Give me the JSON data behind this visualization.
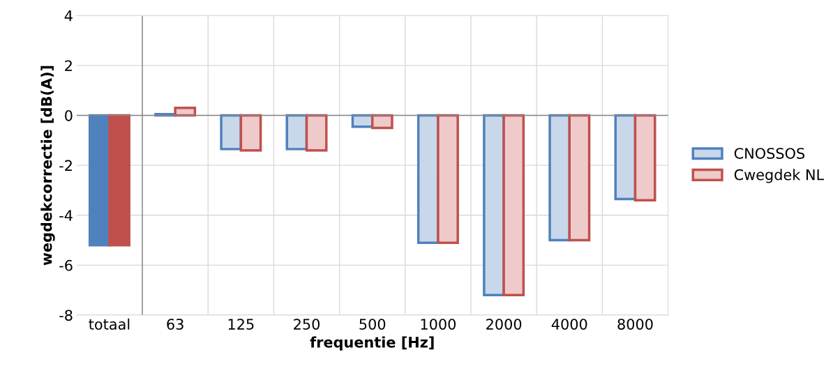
{
  "chart_data": {
    "type": "bar",
    "xlabel": "frequentie [Hz]",
    "ylabel": "wegdekcorrectie [dB(A)]",
    "categories": [
      "totaal",
      "63",
      "125",
      "250",
      "500",
      "1000",
      "2000",
      "4000",
      "8000"
    ],
    "series": [
      {
        "name": "CNOSSOS",
        "color": "#4f81bd",
        "colors": [
          "#4f81bd",
          "#c9d7ea",
          "#c9d7ea",
          "#c9d7ea",
          "#c9d7ea",
          "#c9d7ea",
          "#c9d7ea",
          "#c9d7ea",
          "#c9d7ea"
        ],
        "values": [
          -5.2,
          0.05,
          -1.35,
          -1.35,
          -0.45,
          -5.1,
          -7.2,
          -5.0,
          -3.35
        ]
      },
      {
        "name": "Cwegdek NL",
        "color": "#c0504d",
        "colors": [
          "#c0504d",
          "#efcaca",
          "#efcaca",
          "#efcaca",
          "#efcaca",
          "#efcaca",
          "#efcaca",
          "#efcaca",
          "#efcaca"
        ],
        "values": [
          -5.2,
          0.3,
          -1.4,
          -1.4,
          -0.5,
          -5.1,
          -7.2,
          -5.0,
          -3.4
        ]
      }
    ],
    "ylim": [
      -8,
      4
    ],
    "yticks": [
      -8,
      -6,
      -4,
      -2,
      0,
      2,
      4
    ],
    "grid": true,
    "legend": "right"
  }
}
